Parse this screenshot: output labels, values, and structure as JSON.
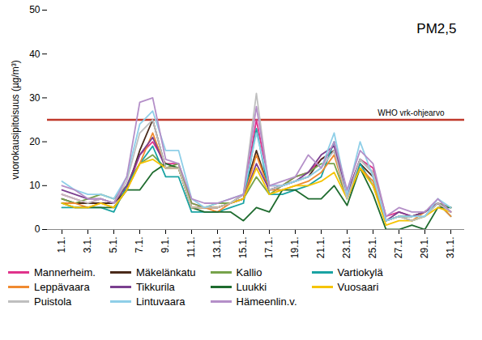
{
  "chart_data": {
    "type": "line",
    "y_label": "vuorokausipitoisuus (µg/m³)",
    "annotation": "PM2,5",
    "reference_line": {
      "value": 25,
      "label": "WHO vrk-ohjearvo",
      "color": "#c0392b"
    },
    "categories": [
      "1.1.",
      null,
      "3.1.",
      null,
      "5.1.",
      null,
      "7.1.",
      null,
      "9.1.",
      null,
      "11.1.",
      null,
      "13.1.",
      null,
      "15.1.",
      null,
      "17.1.",
      null,
      "19.1.",
      null,
      "21.1.",
      null,
      "23.1.",
      null,
      "25.1.",
      null,
      "27.1.",
      null,
      "29.1.",
      null,
      "31.1."
    ],
    "ylim": [
      0,
      50
    ],
    "yticks": [
      0,
      10,
      20,
      30,
      40,
      50
    ],
    "grid": false,
    "legend": "bottom",
    "series": [
      {
        "name": "Mannerheim.",
        "color": "#e0338b",
        "values": [
          8,
          7,
          6,
          7,
          6,
          9,
          17,
          20,
          15,
          15,
          6,
          5,
          5,
          6,
          7,
          25,
          10,
          10,
          12,
          13,
          16,
          18,
          8,
          16,
          14,
          3,
          4,
          3,
          4,
          6,
          4
        ]
      },
      {
        "name": "Mäkelänkatu",
        "color": "#4a2a1a",
        "values": [
          7,
          6,
          6,
          6,
          6,
          9,
          18,
          25,
          14,
          14,
          5,
          5,
          5,
          6,
          8,
          18,
          9,
          10,
          11,
          12,
          16,
          18,
          8,
          15,
          12,
          2,
          3,
          3,
          4,
          6,
          5
        ]
      },
      {
        "name": "Kallio",
        "color": "#77a34b",
        "values": [
          7,
          6,
          7,
          8,
          7,
          10,
          15,
          17,
          14,
          15,
          6,
          5,
          6,
          6,
          7,
          12,
          8,
          10,
          12,
          13,
          15,
          15,
          7,
          16,
          13,
          2,
          3,
          3,
          4,
          6,
          5
        ]
      },
      {
        "name": "Vartiokylä",
        "color": "#1aa3a3",
        "values": [
          5,
          5,
          5,
          5,
          4,
          10,
          15,
          19,
          12,
          12,
          4,
          4,
          4,
          5,
          6,
          23,
          8,
          8,
          9,
          10,
          12,
          20,
          7,
          15,
          10,
          2,
          3,
          2,
          3,
          6,
          3
        ]
      },
      {
        "name": "Leppävaara",
        "color": "#f08a30",
        "values": [
          6,
          6,
          5,
          6,
          5,
          9,
          15,
          22,
          14,
          14,
          5,
          5,
          4,
          6,
          7,
          17,
          9,
          9,
          10,
          11,
          13,
          17,
          7,
          14,
          11,
          2,
          3,
          2,
          4,
          6,
          3
        ]
      },
      {
        "name": "Tikkurila",
        "color": "#7b3f8f",
        "values": [
          9,
          8,
          7,
          7,
          6,
          10,
          17,
          21,
          14,
          14,
          5,
          5,
          5,
          6,
          7,
          15,
          9,
          10,
          11,
          13,
          17,
          19,
          8,
          16,
          13,
          2,
          4,
          3,
          4,
          6,
          4
        ]
      },
      {
        "name": "Luukki",
        "color": "#1e6b2e",
        "values": [
          6,
          5,
          5,
          5,
          5,
          9,
          9,
          13,
          15,
          14,
          5,
          4,
          4,
          4,
          2,
          5,
          4,
          9,
          9,
          7,
          7,
          10,
          5.5,
          14,
          8,
          0,
          0,
          1,
          0,
          5,
          5
        ]
      },
      {
        "name": "Vuosaari",
        "color": "#f5c400",
        "values": [
          6,
          5,
          5,
          6,
          5,
          9,
          15,
          16,
          14,
          14,
          5,
          5,
          5,
          6,
          7,
          14,
          8,
          9,
          10,
          10,
          11,
          13,
          7,
          14,
          10,
          1,
          2,
          2,
          3,
          5,
          4
        ]
      },
      {
        "name": "Puistola",
        "color": "#bfbfbf",
        "values": [
          8,
          7,
          6,
          7,
          6,
          11,
          22,
          25,
          14,
          14,
          5,
          5,
          5,
          6,
          8,
          31,
          9,
          10,
          11,
          12,
          14,
          18,
          7,
          16,
          13,
          2,
          3,
          2,
          3,
          6,
          4
        ]
      },
      {
        "name": "Lintuvaara",
        "color": "#8fcfe8",
        "values": [
          11,
          9,
          8,
          8,
          7,
          12,
          24,
          27,
          18,
          18,
          7,
          5,
          6,
          7,
          8,
          22,
          10,
          10,
          11,
          12,
          14,
          22,
          8,
          20,
          12,
          2,
          3,
          3,
          3,
          7,
          5
        ]
      },
      {
        "name": "Hämeenlin.v.",
        "color": "#b48fc8",
        "values": [
          10,
          9,
          7,
          7,
          6,
          12,
          29,
          30,
          16,
          15,
          7,
          6,
          6,
          7,
          8,
          28,
          10,
          11,
          12,
          17,
          14,
          20,
          9,
          18,
          15,
          3,
          5,
          4,
          4,
          7,
          4
        ]
      }
    ]
  }
}
